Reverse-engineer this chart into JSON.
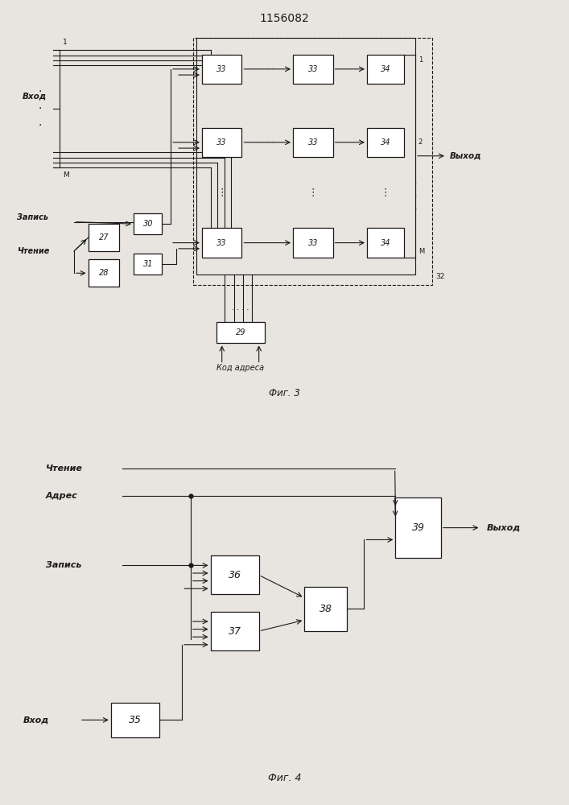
{
  "title": "1156082",
  "fig1_label": "Фиг. 3",
  "fig2_label": "Фиг. 4",
  "bg_color": "#e8e4df",
  "line_color": "#1a1a1a",
  "box_color": "#ffffff"
}
